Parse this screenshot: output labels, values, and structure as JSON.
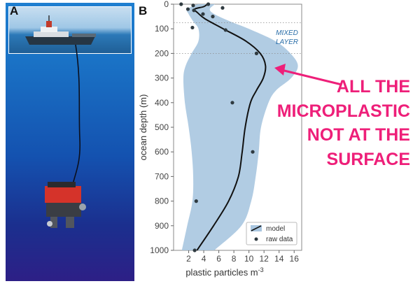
{
  "panels": {
    "a_letter": "A",
    "b_letter": "B"
  },
  "chart_data": {
    "type": "line",
    "x_label": "plastic particles m",
    "x_label_superscript": "-3",
    "y_label": "ocean depth (m)",
    "xlim": [
      0,
      17
    ],
    "ylim": [
      1000,
      0
    ],
    "x_ticks": [
      2,
      4,
      6,
      8,
      10,
      12,
      14,
      16
    ],
    "y_ticks": [
      0,
      100,
      200,
      300,
      400,
      500,
      600,
      700,
      800,
      900,
      1000
    ],
    "mixed_layer_label": [
      "MIXED",
      "LAYER"
    ],
    "reference_depths": [
      75,
      200
    ],
    "model": [
      {
        "depth": 0,
        "value": 4.5
      },
      {
        "depth": 10,
        "value": 4.0
      },
      {
        "depth": 20,
        "value": 2.8
      },
      {
        "depth": 35,
        "value": 3.2
      },
      {
        "depth": 60,
        "value": 4.2
      },
      {
        "depth": 100,
        "value": 6.6
      },
      {
        "depth": 150,
        "value": 9.6
      },
      {
        "depth": 200,
        "value": 11.5
      },
      {
        "depth": 250,
        "value": 12.2
      },
      {
        "depth": 300,
        "value": 11.9
      },
      {
        "depth": 350,
        "value": 11.0
      },
      {
        "depth": 400,
        "value": 10.2
      },
      {
        "depth": 500,
        "value": 9.5
      },
      {
        "depth": 600,
        "value": 9.1
      },
      {
        "depth": 700,
        "value": 8.6
      },
      {
        "depth": 800,
        "value": 7.3
      },
      {
        "depth": 900,
        "value": 5.3
      },
      {
        "depth": 1000,
        "value": 3.1
      }
    ],
    "band_upper": [
      {
        "depth": 0,
        "value": 5.5
      },
      {
        "depth": 20,
        "value": 4.8
      },
      {
        "depth": 40,
        "value": 5.4
      },
      {
        "depth": 70,
        "value": 7.5
      },
      {
        "depth": 100,
        "value": 10.0
      },
      {
        "depth": 150,
        "value": 13.5
      },
      {
        "depth": 200,
        "value": 15.5
      },
      {
        "depth": 250,
        "value": 16.5
      },
      {
        "depth": 300,
        "value": 15.6
      },
      {
        "depth": 350,
        "value": 13.6
      },
      {
        "depth": 400,
        "value": 12.6
      },
      {
        "depth": 500,
        "value": 11.6
      },
      {
        "depth": 600,
        "value": 11.3
      },
      {
        "depth": 700,
        "value": 10.9
      },
      {
        "depth": 800,
        "value": 10.3
      },
      {
        "depth": 900,
        "value": 9.0
      },
      {
        "depth": 1000,
        "value": 5.4
      }
    ],
    "band_lower": [
      {
        "depth": 0,
        "value": 3.2
      },
      {
        "depth": 20,
        "value": 1.8
      },
      {
        "depth": 40,
        "value": 2.0
      },
      {
        "depth": 70,
        "value": 2.6
      },
      {
        "depth": 100,
        "value": 3.3
      },
      {
        "depth": 150,
        "value": 3.3
      },
      {
        "depth": 200,
        "value": 2.4
      },
      {
        "depth": 250,
        "value": 1.6
      },
      {
        "depth": 300,
        "value": 1.3
      },
      {
        "depth": 400,
        "value": 1.5
      },
      {
        "depth": 500,
        "value": 2.0
      },
      {
        "depth": 600,
        "value": 2.4
      },
      {
        "depth": 700,
        "value": 2.6
      },
      {
        "depth": 800,
        "value": 2.5
      },
      {
        "depth": 900,
        "value": 1.8
      },
      {
        "depth": 1000,
        "value": 1.1
      }
    ],
    "raw_data": [
      {
        "depth": 0,
        "value": 1.0
      },
      {
        "depth": 0,
        "value": 4.6
      },
      {
        "depth": 5,
        "value": 2.6
      },
      {
        "depth": 15,
        "value": 6.5
      },
      {
        "depth": 20,
        "value": 1.9
      },
      {
        "depth": 25,
        "value": 2.7
      },
      {
        "depth": 40,
        "value": 3.9
      },
      {
        "depth": 50,
        "value": 5.2
      },
      {
        "depth": 95,
        "value": 2.5
      },
      {
        "depth": 105,
        "value": 6.9
      },
      {
        "depth": 200,
        "value": 11.0
      },
      {
        "depth": 400,
        "value": 7.8
      },
      {
        "depth": 600,
        "value": 10.5
      },
      {
        "depth": 800,
        "value": 3.0
      },
      {
        "depth": 1000,
        "value": 2.8
      }
    ],
    "legend": {
      "model": "model",
      "raw": "raw data",
      "position": "bottom-right"
    }
  },
  "callout": {
    "lines": [
      "ALL THE",
      "MICROPLASTIC",
      "NOT AT THE",
      "SURFACE"
    ],
    "color": "#ee1f79"
  },
  "colors": {
    "band": "#a9c6e0",
    "line": "#111111",
    "dots": "#2f3a40",
    "accent": "#ee1f79"
  }
}
